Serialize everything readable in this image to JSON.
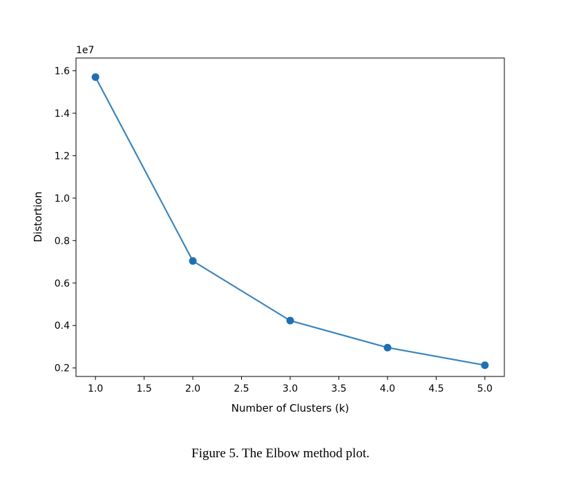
{
  "caption": "Figure 5. The Elbow method plot.",
  "chart_data": {
    "type": "line",
    "x": [
      1.0,
      2.0,
      3.0,
      4.0,
      5.0
    ],
    "series": [
      {
        "values": [
          15700000,
          7040000,
          4230000,
          2960000,
          2130000
        ],
        "color": "#3b85bf",
        "marker_color": "#1f6fb4",
        "marker": "circle"
      }
    ],
    "xlabel": "Number of Clusters (k)",
    "ylabel": "Distortion",
    "y_offset_label": "1e7",
    "xlim": [
      0.8,
      5.2
    ],
    "ylim": [
      1600000,
      16600000
    ],
    "xticks": [
      1.0,
      1.5,
      2.0,
      2.5,
      3.0,
      3.5,
      4.0,
      4.5,
      5.0
    ],
    "xtick_labels": [
      "1.0",
      "1.5",
      "2.0",
      "2.5",
      "3.0",
      "3.5",
      "4.0",
      "4.5",
      "5.0"
    ],
    "yticks": [
      2000000,
      4000000,
      6000000,
      8000000,
      10000000,
      12000000,
      14000000,
      16000000
    ],
    "ytick_labels": [
      "0.2",
      "0.4",
      "0.6",
      "0.8",
      "1.0",
      "1.2",
      "1.4",
      "1.6"
    ],
    "grid": false,
    "legend": false
  }
}
